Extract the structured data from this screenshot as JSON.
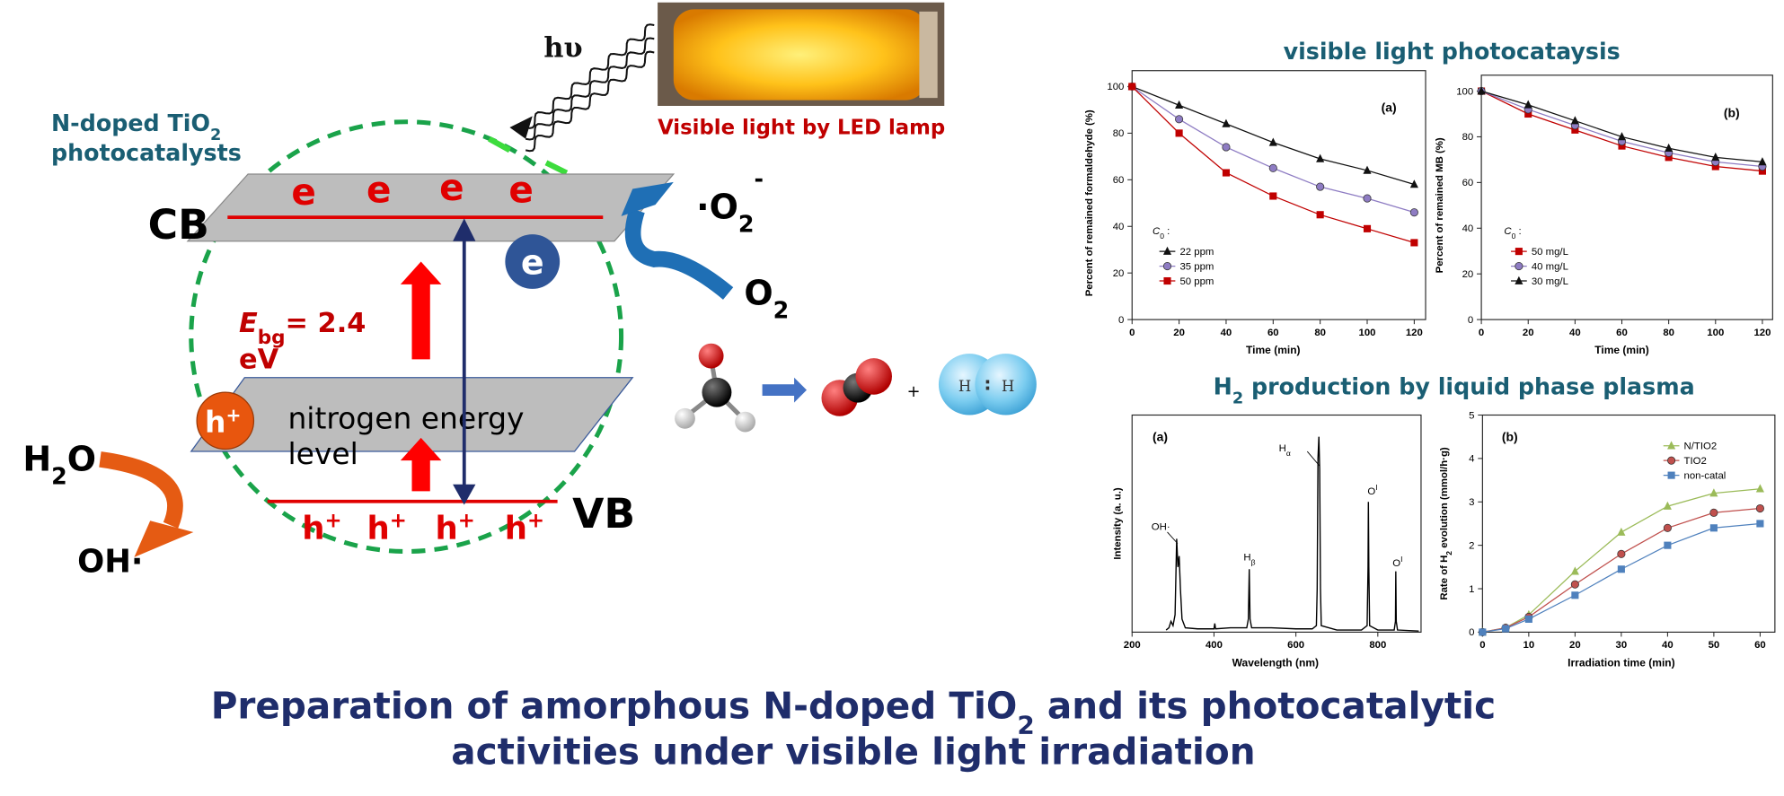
{
  "title": [
    [
      "Preparation of amorphous N-doped TiO",
      "2",
      " and its photocatalytic"
    ],
    [
      "activities under visible light irradiation"
    ]
  ],
  "diagram": {
    "photon": "hυ",
    "lamp_caption": "Visible light by LED lamp",
    "catalyst": [
      "N-doped TiO",
      "2",
      "photocatalysts"
    ],
    "cb": "CB",
    "vb": "VB",
    "cb_electrons": [
      "e",
      "e",
      "e",
      "e"
    ],
    "electron": "e",
    "vb_holes": [
      [
        "h",
        "+"
      ],
      [
        "h",
        "+"
      ],
      [
        "h",
        "+"
      ],
      [
        "h",
        "+"
      ]
    ],
    "hole": [
      "h",
      "+"
    ],
    "superoxide": [
      "·O",
      "2",
      "-"
    ],
    "oxygen": [
      "O",
      "2"
    ],
    "water": [
      "H",
      "2",
      "O"
    ],
    "hydroxyl": "OH·",
    "band_gap": [
      "E",
      "bg",
      "= 2.4",
      "eV"
    ],
    "nitrogen_level": [
      "nitrogen energy",
      "level"
    ],
    "plus": "+",
    "hydrogen_atoms": [
      "H",
      "H"
    ],
    "bond": ":"
  },
  "sections": {
    "photocatalysis": "visible light photocataysis",
    "plasma": [
      "H",
      "2",
      " production by liquid phase plasma"
    ]
  },
  "chart_data": [
    {
      "type": "line",
      "label": "(a)",
      "x_label": "Time (min)",
      "y_label": [
        "Percent of remained formaldehyde (%)"
      ],
      "x": [
        0,
        20,
        40,
        60,
        80,
        100,
        120
      ],
      "xlim": [
        0,
        120
      ],
      "xticks": [
        0,
        20,
        40,
        60,
        80,
        100,
        120
      ],
      "ylim": [
        0,
        100
      ],
      "yticks": [
        0,
        20,
        40,
        60,
        80,
        100
      ],
      "legend_title": [
        "C",
        "0",
        " :"
      ],
      "series": [
        {
          "name": "22 ppm",
          "color": "#111111",
          "marker": "triangle",
          "values": [
            100,
            92,
            84,
            76,
            69,
            64,
            58
          ]
        },
        {
          "name": "35 ppm",
          "color": "#8e7cc3",
          "marker": "circle",
          "values": [
            100,
            86,
            74,
            65,
            57,
            52,
            46
          ]
        },
        {
          "name": "50 ppm",
          "color": "#c00000",
          "marker": "square",
          "values": [
            100,
            80,
            63,
            53,
            45,
            39,
            33
          ]
        }
      ]
    },
    {
      "type": "line",
      "label": "(b)",
      "x_label": "Time (min)",
      "y_label": [
        "Percent of remained MB (%)"
      ],
      "x": [
        0,
        20,
        40,
        60,
        80,
        100,
        120
      ],
      "xlim": [
        0,
        120
      ],
      "xticks": [
        0,
        20,
        40,
        60,
        80,
        100,
        120
      ],
      "ylim": [
        0,
        100
      ],
      "yticks": [
        0,
        20,
        40,
        60,
        80,
        100
      ],
      "legend_title": [
        "C",
        "0",
        " :"
      ],
      "series": [
        {
          "name": "50 mg/L",
          "color": "#c00000",
          "marker": "square",
          "values": [
            100,
            90,
            83,
            76,
            71,
            67,
            65
          ]
        },
        {
          "name": "40 mg/L",
          "color": "#8e7cc3",
          "marker": "circle",
          "values": [
            100,
            92,
            85,
            78,
            73,
            69,
            67
          ]
        },
        {
          "name": "30 mg/L",
          "color": "#111111",
          "marker": "triangle",
          "values": [
            100,
            94,
            87,
            80,
            75,
            71,
            69
          ]
        }
      ]
    },
    {
      "type": "line",
      "label": "(a)",
      "x_label": "Wavelength (nm)",
      "y_label": [
        "Intensity (a. u.)"
      ],
      "x": [
        283,
        290,
        295,
        300,
        305,
        309,
        312,
        315,
        318,
        322,
        330,
        360,
        400,
        402,
        404,
        440,
        480,
        484,
        486,
        488,
        492,
        540,
        600,
        640,
        650,
        652,
        654,
        656,
        658,
        660,
        662,
        700,
        760,
        774,
        776,
        777,
        778,
        780,
        800,
        840,
        843,
        844,
        845,
        848,
        900
      ],
      "values": [
        1,
        2,
        5,
        3,
        8,
        43,
        30,
        35,
        20,
        6,
        2,
        1.5,
        1.5,
        4,
        1.5,
        2,
        2,
        6,
        29,
        6,
        2,
        2,
        1.5,
        1.5,
        3,
        20,
        80,
        90,
        75,
        20,
        3,
        1,
        1,
        3,
        30,
        60,
        30,
        3,
        1,
        1,
        5,
        28,
        5,
        1,
        0.5
      ],
      "color": "#000000",
      "xlim": [
        200,
        900
      ],
      "xticks": [
        200,
        400,
        600,
        800
      ],
      "ylim": [
        0,
        100
      ],
      "annotations": [
        [
          "OH·"
        ],
        [
          "H",
          "β"
        ],
        [
          "H",
          "α"
        ],
        [
          "O",
          "I"
        ],
        [
          "O",
          "I"
        ]
      ]
    },
    {
      "type": "line",
      "label": "(b)",
      "x_label": "Irradiation time (min)",
      "y_label": [
        "Rate of H",
        "2",
        " evolution (mmol/h·g)"
      ],
      "x": [
        0,
        5,
        10,
        20,
        30,
        40,
        50,
        60
      ],
      "xlim": [
        0,
        60
      ],
      "xticks": [
        0,
        10,
        20,
        30,
        40,
        50,
        60
      ],
      "ylim": [
        0,
        5
      ],
      "yticks": [
        0,
        1,
        2,
        3,
        4,
        5
      ],
      "series": [
        {
          "name": "N/TIO2",
          "color": "#9bbb59",
          "marker": "triangle",
          "values": [
            0,
            0.1,
            0.4,
            1.4,
            2.3,
            2.9,
            3.2,
            3.3
          ]
        },
        {
          "name": "TIO2",
          "color": "#c0504d",
          "marker": "circle",
          "values": [
            0,
            0.1,
            0.35,
            1.1,
            1.8,
            2.4,
            2.75,
            2.85
          ]
        },
        {
          "name": "non-catal",
          "color": "#4f81bd",
          "marker": "square",
          "values": [
            0,
            0.08,
            0.3,
            0.85,
            1.45,
            2.0,
            2.4,
            2.5
          ]
        }
      ]
    }
  ]
}
